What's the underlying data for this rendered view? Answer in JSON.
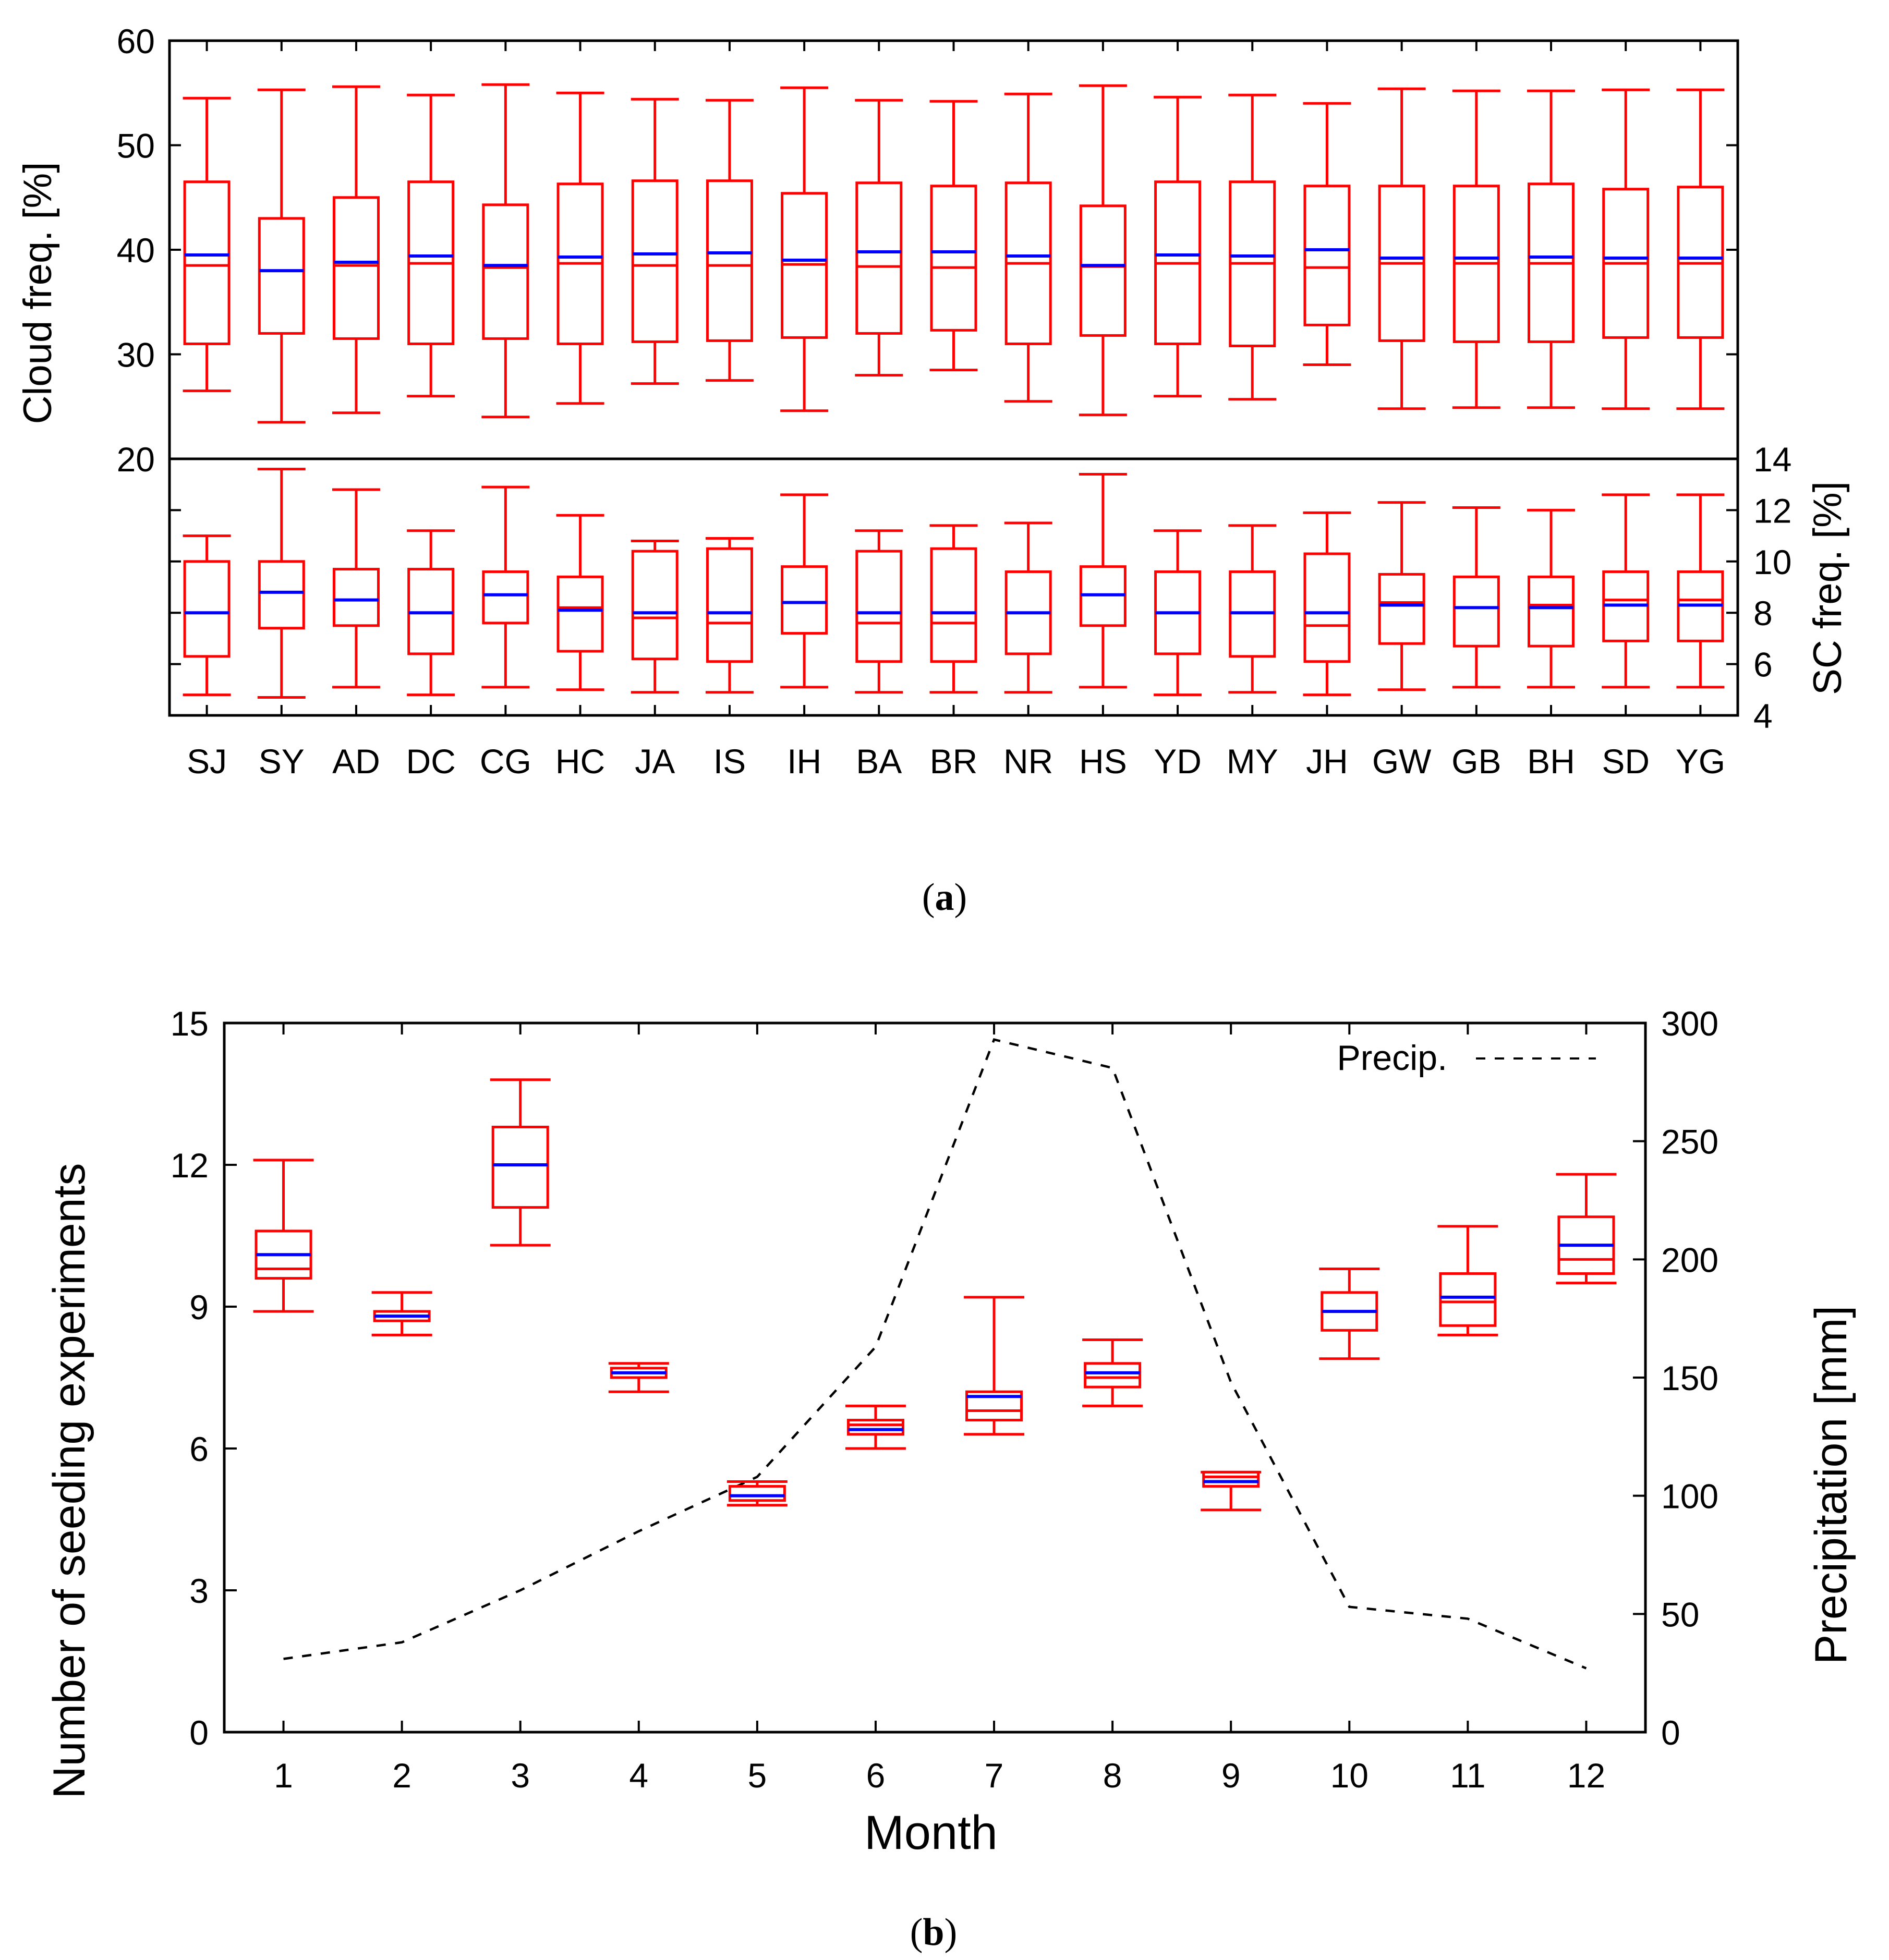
{
  "chart_data": [
    {
      "id": "a",
      "type": "boxplot",
      "caption_letter": "a",
      "caption_open": "(",
      "caption_close": ")",
      "stations": [
        "SJ",
        "SY",
        "AD",
        "DC",
        "CG",
        "HC",
        "JA",
        "IS",
        "IH",
        "BA",
        "BR",
        "NR",
        "HS",
        "YD",
        "MY",
        "JH",
        "GW",
        "GB",
        "BH",
        "SD",
        "YG"
      ],
      "colors": {
        "box": "#ff0000",
        "mean": "#0000ff"
      },
      "panels": [
        {
          "name": "cloud",
          "ylabel": "Cloud freq. [%]",
          "ylim": [
            20,
            60
          ],
          "yticks": [
            20,
            30,
            40,
            50,
            60
          ],
          "ytick_labels": [
            "20",
            "30",
            "40",
            "50",
            "60"
          ],
          "axis_side": "left",
          "boxes": [
            {
              "min": 26.5,
              "q1": 31.0,
              "median": 38.5,
              "q3": 46.5,
              "max": 54.5,
              "mean": 39.5
            },
            {
              "min": 23.5,
              "q1": 32.0,
              "median": 38.0,
              "q3": 43.0,
              "max": 55.3,
              "mean": 38.0
            },
            {
              "min": 24.4,
              "q1": 31.5,
              "median": 38.5,
              "q3": 45.0,
              "max": 55.6,
              "mean": 38.8
            },
            {
              "min": 26.0,
              "q1": 31.0,
              "median": 38.7,
              "q3": 46.5,
              "max": 54.8,
              "mean": 39.4
            },
            {
              "min": 24.0,
              "q1": 31.5,
              "median": 38.3,
              "q3": 44.3,
              "max": 55.8,
              "mean": 38.5
            },
            {
              "min": 25.3,
              "q1": 31.0,
              "median": 38.7,
              "q3": 46.3,
              "max": 55.0,
              "mean": 39.3
            },
            {
              "min": 27.2,
              "q1": 31.2,
              "median": 38.5,
              "q3": 46.6,
              "max": 54.4,
              "mean": 39.6
            },
            {
              "min": 27.5,
              "q1": 31.3,
              "median": 38.5,
              "q3": 46.6,
              "max": 54.3,
              "mean": 39.7
            },
            {
              "min": 24.6,
              "q1": 31.6,
              "median": 38.6,
              "q3": 45.4,
              "max": 55.5,
              "mean": 39.0
            },
            {
              "min": 28.0,
              "q1": 32.0,
              "median": 38.4,
              "q3": 46.4,
              "max": 54.3,
              "mean": 39.8
            },
            {
              "min": 28.5,
              "q1": 32.3,
              "median": 38.3,
              "q3": 46.1,
              "max": 54.2,
              "mean": 39.8
            },
            {
              "min": 25.5,
              "q1": 31.0,
              "median": 38.7,
              "q3": 46.4,
              "max": 54.9,
              "mean": 39.4
            },
            {
              "min": 24.2,
              "q1": 31.8,
              "median": 38.4,
              "q3": 44.2,
              "max": 55.7,
              "mean": 38.5
            },
            {
              "min": 26.0,
              "q1": 31.0,
              "median": 38.7,
              "q3": 46.5,
              "max": 54.6,
              "mean": 39.5
            },
            {
              "min": 25.7,
              "q1": 30.8,
              "median": 38.7,
              "q3": 46.5,
              "max": 54.8,
              "mean": 39.4
            },
            {
              "min": 29.0,
              "q1": 32.8,
              "median": 38.3,
              "q3": 46.1,
              "max": 54.0,
              "mean": 40.0
            },
            {
              "min": 24.8,
              "q1": 31.3,
              "median": 38.7,
              "q3": 46.1,
              "max": 55.4,
              "mean": 39.2
            },
            {
              "min": 24.9,
              "q1": 31.2,
              "median": 38.7,
              "q3": 46.1,
              "max": 55.2,
              "mean": 39.2
            },
            {
              "min": 24.9,
              "q1": 31.2,
              "median": 38.7,
              "q3": 46.3,
              "max": 55.2,
              "mean": 39.3
            },
            {
              "min": 24.8,
              "q1": 31.6,
              "median": 38.7,
              "q3": 45.8,
              "max": 55.3,
              "mean": 39.2
            },
            {
              "min": 24.8,
              "q1": 31.6,
              "median": 38.7,
              "q3": 46.0,
              "max": 55.3,
              "mean": 39.2
            }
          ]
        },
        {
          "name": "sc",
          "ylabel": "SC freq. [%]",
          "ylim": [
            4,
            14
          ],
          "yticks": [
            4,
            6,
            8,
            10,
            12,
            14
          ],
          "ytick_labels": [
            "4",
            "6",
            "8",
            "10",
            "12",
            "14"
          ],
          "axis_side": "right",
          "boxes": [
            {
              "min": 4.8,
              "q1": 6.3,
              "median": 8.0,
              "q3": 10.0,
              "max": 11.0,
              "mean": 8.0
            },
            {
              "min": 4.7,
              "q1": 7.4,
              "median": 8.8,
              "q3": 10.0,
              "max": 13.6,
              "mean": 8.8
            },
            {
              "min": 5.1,
              "q1": 7.5,
              "median": 8.5,
              "q3": 9.7,
              "max": 12.8,
              "mean": 8.5
            },
            {
              "min": 4.8,
              "q1": 6.4,
              "median": 8.0,
              "q3": 9.7,
              "max": 11.2,
              "mean": 8.0
            },
            {
              "min": 5.1,
              "q1": 7.6,
              "median": 8.7,
              "q3": 9.6,
              "max": 12.9,
              "mean": 8.7
            },
            {
              "min": 5.0,
              "q1": 6.5,
              "median": 8.2,
              "q3": 9.4,
              "max": 11.8,
              "mean": 8.1
            },
            {
              "min": 4.9,
              "q1": 6.2,
              "median": 7.8,
              "q3": 10.4,
              "max": 10.8,
              "mean": 8.0
            },
            {
              "min": 4.9,
              "q1": 6.1,
              "median": 7.6,
              "q3": 10.5,
              "max": 10.9,
              "mean": 8.0
            },
            {
              "min": 5.1,
              "q1": 7.2,
              "median": 8.4,
              "q3": 9.8,
              "max": 12.6,
              "mean": 8.4
            },
            {
              "min": 4.9,
              "q1": 6.1,
              "median": 7.6,
              "q3": 10.4,
              "max": 11.2,
              "mean": 8.0
            },
            {
              "min": 4.9,
              "q1": 6.1,
              "median": 7.6,
              "q3": 10.5,
              "max": 11.4,
              "mean": 8.0
            },
            {
              "min": 4.9,
              "q1": 6.4,
              "median": 8.0,
              "q3": 9.6,
              "max": 11.5,
              "mean": 8.0
            },
            {
              "min": 5.1,
              "q1": 7.5,
              "median": 8.7,
              "q3": 9.8,
              "max": 13.4,
              "mean": 8.7
            },
            {
              "min": 4.8,
              "q1": 6.4,
              "median": 8.0,
              "q3": 9.6,
              "max": 11.2,
              "mean": 8.0
            },
            {
              "min": 4.9,
              "q1": 6.3,
              "median": 8.0,
              "q3": 9.6,
              "max": 11.4,
              "mean": 8.0
            },
            {
              "min": 4.8,
              "q1": 6.1,
              "median": 7.5,
              "q3": 10.3,
              "max": 11.9,
              "mean": 8.0
            },
            {
              "min": 5.0,
              "q1": 6.8,
              "median": 8.4,
              "q3": 9.5,
              "max": 12.3,
              "mean": 8.3
            },
            {
              "min": 5.1,
              "q1": 6.7,
              "median": 8.2,
              "q3": 9.4,
              "max": 12.1,
              "mean": 8.2
            },
            {
              "min": 5.1,
              "q1": 6.7,
              "median": 8.3,
              "q3": 9.4,
              "max": 12.0,
              "mean": 8.2
            },
            {
              "min": 5.1,
              "q1": 6.9,
              "median": 8.5,
              "q3": 9.6,
              "max": 12.6,
              "mean": 8.3
            },
            {
              "min": 5.1,
              "q1": 6.9,
              "median": 8.5,
              "q3": 9.6,
              "max": 12.6,
              "mean": 8.3
            }
          ]
        }
      ]
    },
    {
      "id": "b",
      "type": "boxplot",
      "caption_letter": "b",
      "caption_open": "(",
      "caption_close": ")",
      "xlabel": "Month",
      "ylabel": "Number of seeding experiments",
      "y2label": "Precipitation [mm]",
      "categories": [
        "1",
        "2",
        "3",
        "4",
        "5",
        "6",
        "7",
        "8",
        "9",
        "10",
        "11",
        "12"
      ],
      "ylim": [
        0,
        15
      ],
      "yticks": [
        0,
        3,
        6,
        9,
        12,
        15
      ],
      "ytick_labels": [
        "0",
        "3",
        "6",
        "9",
        "12",
        "15"
      ],
      "y2lim": [
        0,
        300
      ],
      "y2ticks": [
        0,
        50,
        100,
        150,
        200,
        250,
        300
      ],
      "y2tick_labels": [
        "0",
        "50",
        "100",
        "150",
        "200",
        "250",
        "300"
      ],
      "colors": {
        "box": "#ff0000",
        "mean": "#0000ff",
        "line": "#000000"
      },
      "legend": {
        "label": "Precip.",
        "position": "top-right"
      },
      "boxes": [
        {
          "min": 8.9,
          "q1": 9.6,
          "median": 9.8,
          "q3": 10.6,
          "max": 12.1,
          "mean": 10.1
        },
        {
          "min": 8.4,
          "q1": 8.7,
          "median": 8.8,
          "q3": 8.9,
          "max": 9.3,
          "mean": 8.8
        },
        {
          "min": 10.3,
          "q1": 11.1,
          "median": 12.0,
          "q3": 12.8,
          "max": 13.8,
          "mean": 12.0
        },
        {
          "min": 7.2,
          "q1": 7.5,
          "median": 7.6,
          "q3": 7.7,
          "max": 7.8,
          "mean": 7.6
        },
        {
          "min": 4.8,
          "q1": 4.9,
          "median": 5.0,
          "q3": 5.2,
          "max": 5.3,
          "mean": 5.0
        },
        {
          "min": 6.0,
          "q1": 6.3,
          "median": 6.5,
          "q3": 6.6,
          "max": 6.9,
          "mean": 6.4
        },
        {
          "min": 6.3,
          "q1": 6.6,
          "median": 6.8,
          "q3": 7.2,
          "max": 9.2,
          "mean": 7.1
        },
        {
          "min": 6.9,
          "q1": 7.3,
          "median": 7.5,
          "q3": 7.8,
          "max": 8.3,
          "mean": 7.6
        },
        {
          "min": 4.7,
          "q1": 5.2,
          "median": 5.4,
          "q3": 5.5,
          "max": 5.5,
          "mean": 5.3
        },
        {
          "min": 7.9,
          "q1": 8.5,
          "median": 8.9,
          "q3": 9.3,
          "max": 9.8,
          "mean": 8.9
        },
        {
          "min": 8.4,
          "q1": 8.6,
          "median": 9.1,
          "q3": 9.7,
          "max": 10.7,
          "mean": 9.2
        },
        {
          "min": 9.5,
          "q1": 9.7,
          "median": 10.0,
          "q3": 10.9,
          "max": 11.8,
          "mean": 10.3
        }
      ],
      "precip": [
        31,
        38,
        60,
        85,
        108,
        163,
        293,
        281,
        148,
        53,
        48,
        27
      ]
    }
  ]
}
